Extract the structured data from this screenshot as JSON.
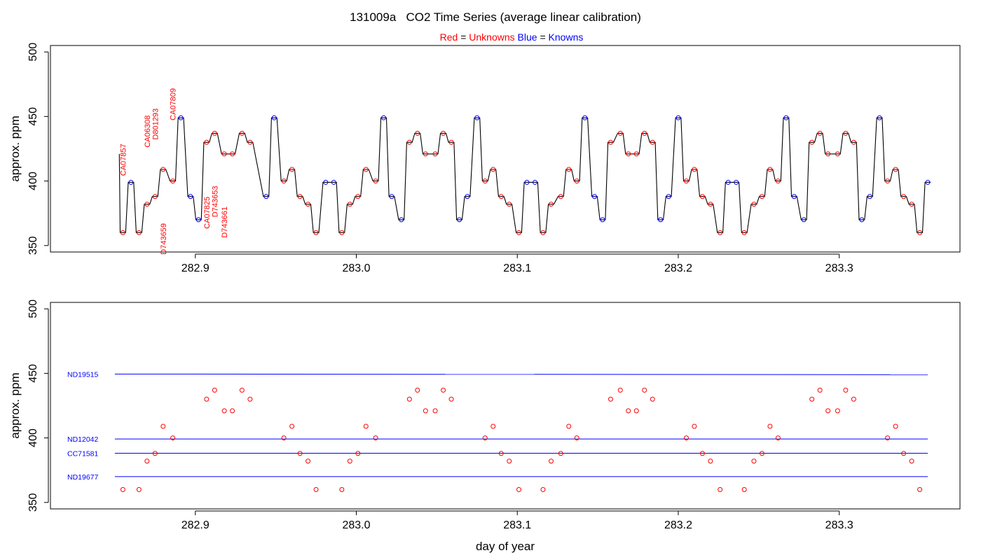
{
  "chart_data": [
    {
      "type": "line",
      "title": "131009a   CO2 Time Series (average linear calibration)",
      "legend": {
        "red_key": "Red",
        "eq": "=",
        "red_text": "Unknowns",
        "blue_key": "Blue",
        "blue_text": "Knowns",
        "placement": "top-center"
      },
      "xlabel": "",
      "ylabel": "approx. ppm",
      "xlim": [
        282.81,
        283.375
      ],
      "ylim": [
        345,
        505
      ],
      "xticks": [
        282.9,
        283.0,
        283.1,
        283.2,
        283.3
      ],
      "xtick_labels": [
        "282.9",
        "283.0",
        "283.1",
        "283.2",
        "283.3"
      ],
      "yticks": [
        350,
        400,
        450,
        500
      ],
      "ytick_labels": [
        "350",
        "400",
        "450",
        "500"
      ],
      "colors": {
        "line": "#000000",
        "unknown": "#ff0000",
        "known": "#0000ff"
      },
      "trace_start": 421,
      "series": [
        {
          "name": "Unknowns",
          "x": [
            282.855,
            282.865,
            282.87,
            282.875,
            282.88,
            282.886,
            282.907,
            282.912,
            282.918,
            282.923,
            282.929,
            282.934,
            282.955,
            282.96,
            282.965,
            282.97,
            282.975,
            282.991,
            282.996,
            283.001,
            283.006,
            283.012,
            283.033,
            283.038,
            283.043,
            283.049,
            283.054,
            283.059,
            283.08,
            283.085,
            283.09,
            283.095,
            283.101,
            283.116,
            283.121,
            283.127,
            283.132,
            283.137,
            283.158,
            283.164,
            283.169,
            283.174,
            283.179,
            283.184,
            283.205,
            283.21,
            283.215,
            283.22,
            283.226,
            283.241,
            283.247,
            283.252,
            283.257,
            283.262,
            283.283,
            283.288,
            283.293,
            283.299,
            283.304,
            283.309,
            283.33,
            283.335,
            283.34,
            283.345,
            283.35
          ],
          "y": [
            360,
            360,
            382,
            388,
            409,
            400,
            430,
            437,
            421,
            421,
            437,
            430,
            400,
            409,
            388,
            382,
            360,
            360,
            382,
            388,
            409,
            400,
            430,
            437,
            421,
            421,
            437,
            430,
            400,
            409,
            388,
            382,
            360,
            360,
            382,
            388,
            409,
            400,
            430,
            437,
            421,
            421,
            437,
            430,
            400,
            409,
            388,
            382,
            360,
            360,
            382,
            388,
            409,
            400,
            430,
            437,
            421,
            421,
            437,
            430,
            400,
            409,
            388,
            382,
            360
          ]
        },
        {
          "name": "Knowns",
          "x": [
            282.86,
            282.891,
            282.897,
            282.902,
            282.944,
            282.949,
            282.981,
            282.986,
            283.017,
            283.022,
            283.028,
            283.064,
            283.069,
            283.075,
            283.106,
            283.111,
            283.142,
            283.148,
            283.153,
            283.189,
            283.194,
            283.2,
            283.231,
            283.236,
            283.267,
            283.272,
            283.278,
            283.314,
            283.319,
            283.325,
            283.355
          ],
          "y": [
            399,
            449,
            388,
            370,
            388,
            449,
            399,
            399,
            449,
            388,
            370,
            370,
            388,
            449,
            399,
            399,
            449,
            388,
            370,
            370,
            388,
            449,
            399,
            399,
            449,
            388,
            370,
            370,
            388,
            449,
            399
          ]
        }
      ],
      "annotations": [
        {
          "text": "CA07857",
          "x": 282.855,
          "y": 404
        },
        {
          "text": "CA06308",
          "x": 282.87,
          "y": 426
        },
        {
          "text": "D801293",
          "x": 282.875,
          "y": 432
        },
        {
          "text": "D743659",
          "x": 282.88,
          "y": 343
        },
        {
          "text": "CA07809",
          "x": 282.886,
          "y": 447
        },
        {
          "text": "CA07825",
          "x": 282.907,
          "y": 363
        },
        {
          "text": "D743653",
          "x": 282.912,
          "y": 372
        },
        {
          "text": "D743661",
          "x": 282.918,
          "y": 356
        }
      ]
    },
    {
      "type": "scatter",
      "title": "",
      "xlabel": "day of year",
      "ylabel": "approx. ppm",
      "xlim": [
        282.81,
        283.375
      ],
      "ylim": [
        345,
        505
      ],
      "xticks": [
        282.9,
        283.0,
        283.1,
        283.2,
        283.3
      ],
      "xtick_labels": [
        "282.9",
        "283.0",
        "283.1",
        "283.2",
        "283.3"
      ],
      "yticks": [
        350,
        400,
        450,
        500
      ],
      "ytick_labels": [
        "350",
        "400",
        "450",
        "500"
      ],
      "reference_lines": [
        {
          "label": "ND19515",
          "x0": 282.85,
          "x1": 283.355,
          "y0": 449.5,
          "y1": 449.0
        },
        {
          "label": "ND12042",
          "x0": 282.85,
          "x1": 283.355,
          "y0": 399.2,
          "y1": 399.2
        },
        {
          "label": "CC71581",
          "x0": 282.85,
          "x1": 283.355,
          "y0": 388.1,
          "y1": 388.1
        },
        {
          "label": "ND19677",
          "x0": 282.85,
          "x1": 283.355,
          "y0": 370.0,
          "y1": 370.0
        }
      ],
      "series": [
        {
          "name": "Unknowns",
          "x": [
            282.855,
            282.865,
            282.87,
            282.875,
            282.88,
            282.886,
            282.907,
            282.912,
            282.918,
            282.923,
            282.929,
            282.934,
            282.955,
            282.96,
            282.965,
            282.97,
            282.975,
            282.991,
            282.996,
            283.001,
            283.006,
            283.012,
            283.033,
            283.038,
            283.043,
            283.049,
            283.054,
            283.059,
            283.08,
            283.085,
            283.09,
            283.095,
            283.101,
            283.116,
            283.121,
            283.127,
            283.132,
            283.137,
            283.158,
            283.164,
            283.169,
            283.174,
            283.179,
            283.184,
            283.205,
            283.21,
            283.215,
            283.22,
            283.226,
            283.241,
            283.247,
            283.252,
            283.257,
            283.262,
            283.283,
            283.288,
            283.293,
            283.299,
            283.304,
            283.309,
            283.33,
            283.335,
            283.34,
            283.345,
            283.35
          ],
          "y": [
            360,
            360,
            382,
            388,
            409,
            400,
            430,
            437,
            421,
            421,
            437,
            430,
            400,
            409,
            388,
            382,
            360,
            360,
            382,
            388,
            409,
            400,
            430,
            437,
            421,
            421,
            437,
            430,
            400,
            409,
            388,
            382,
            360,
            360,
            382,
            388,
            409,
            400,
            430,
            437,
            421,
            421,
            437,
            430,
            400,
            409,
            388,
            382,
            360,
            360,
            382,
            388,
            409,
            400,
            430,
            437,
            421,
            421,
            437,
            430,
            400,
            409,
            388,
            382,
            360
          ]
        }
      ]
    }
  ]
}
